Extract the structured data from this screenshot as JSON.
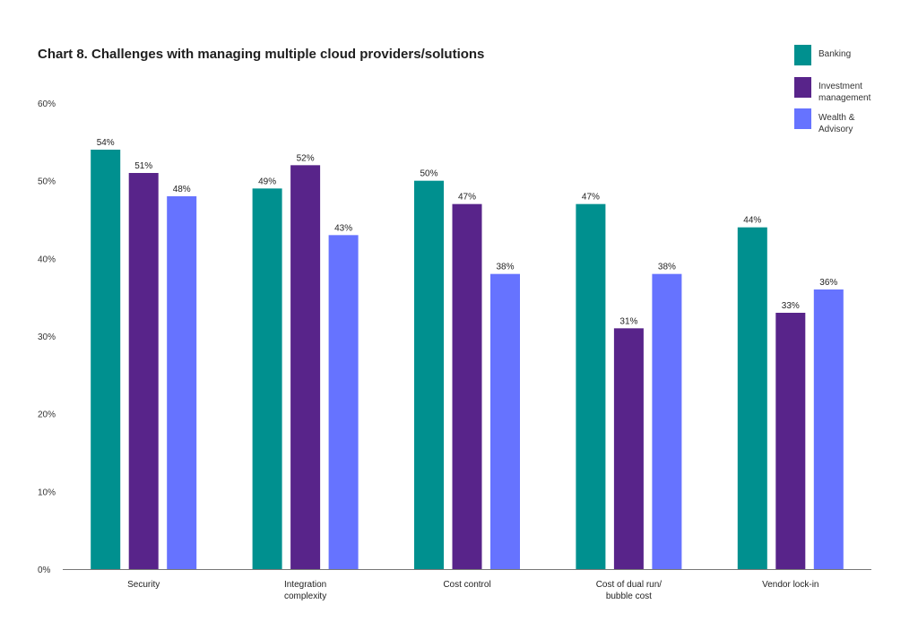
{
  "chart_data": {
    "type": "bar",
    "title": "Chart 8. Challenges with managing multiple cloud providers/solutions",
    "categories": [
      "Security",
      "Integration\ncomplexity",
      "Cost control",
      "Cost of dual run/\nbubble cost",
      "Vendor lock-in"
    ],
    "series": [
      {
        "name": "Banking",
        "color": "#00908f",
        "values": [
          54,
          49,
          50,
          47,
          44
        ]
      },
      {
        "name": "Investment\nmanagement",
        "color": "#58248a",
        "values": [
          51,
          52,
          47,
          31,
          33
        ]
      },
      {
        "name": "Wealth &\nAdvisory",
        "color": "#6673ff",
        "values": [
          48,
          43,
          38,
          38,
          36
        ]
      }
    ],
    "value_suffix": "%",
    "ylim": [
      0,
      60
    ],
    "yticks": [
      0,
      10,
      20,
      30,
      40,
      50,
      60
    ],
    "ytick_labels": [
      "0%",
      "10%",
      "20%",
      "30%",
      "40%",
      "50%",
      "60%"
    ],
    "xlabel": "",
    "ylabel": "",
    "grid": false,
    "legend_position": "top-right"
  }
}
